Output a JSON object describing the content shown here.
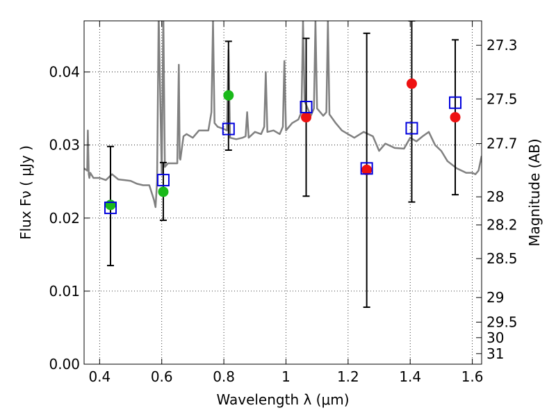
{
  "chart_data": {
    "type": "scatter",
    "xlabel": "Wavelength  λ (μm)",
    "ylabel": "Flux  Fν  ( μJy )",
    "y2label": "Magnitude (AB)",
    "xlim": [
      0.35,
      1.63
    ],
    "ylim": [
      0.0,
      0.047
    ],
    "grid": true,
    "grid_style": "dotted",
    "x_ticks": [
      {
        "value": 0.4,
        "label": "0.4"
      },
      {
        "value": 0.6,
        "label": "0.6"
      },
      {
        "value": 0.8,
        "label": "0.8"
      },
      {
        "value": 1.0,
        "label": "1"
      },
      {
        "value": 1.2,
        "label": "1.2"
      },
      {
        "value": 1.4,
        "label": "1.4"
      },
      {
        "value": 1.6,
        "label": "1.6"
      }
    ],
    "y_ticks": [
      {
        "value": 0.0,
        "label": "0.00"
      },
      {
        "value": 0.01,
        "label": "0.01"
      },
      {
        "value": 0.02,
        "label": "0.02"
      },
      {
        "value": 0.03,
        "label": "0.03"
      },
      {
        "value": 0.04,
        "label": "0.04"
      }
    ],
    "y2_ticks": [
      {
        "mag": 27.3,
        "label": "27.3"
      },
      {
        "mag": 27.5,
        "label": "27.5"
      },
      {
        "mag": 27.7,
        "label": "27.7"
      },
      {
        "mag": 28.0,
        "label": "28"
      },
      {
        "mag": 28.2,
        "label": "28.2"
      },
      {
        "mag": 28.5,
        "label": "28.5"
      },
      {
        "mag": 29.0,
        "label": "29"
      },
      {
        "mag": 29.5,
        "label": "29.5"
      },
      {
        "mag": 30.0,
        "label": "30"
      },
      {
        "mag": 31.0,
        "label": "31"
      }
    ],
    "colors": {
      "sed": "#808080",
      "green_points": "#1ab91a",
      "red_points": "#ee1111",
      "model_squares": "#0000dd",
      "errorbars": "#000000"
    },
    "sed_model": {
      "x": [
        0.35,
        0.36,
        0.362,
        0.365,
        0.367,
        0.37,
        0.38,
        0.4,
        0.42,
        0.44,
        0.46,
        0.48,
        0.5,
        0.52,
        0.54,
        0.56,
        0.575,
        0.58,
        0.585,
        0.59,
        0.6,
        0.605,
        0.61,
        0.62,
        0.65,
        0.655,
        0.658,
        0.66,
        0.67,
        0.68,
        0.7,
        0.72,
        0.75,
        0.76,
        0.765,
        0.77,
        0.78,
        0.8,
        0.81,
        0.815,
        0.82,
        0.84,
        0.86,
        0.87,
        0.875,
        0.88,
        0.9,
        0.92,
        0.93,
        0.935,
        0.94,
        0.96,
        0.98,
        0.99,
        0.995,
        1.0,
        1.02,
        1.04,
        1.05,
        1.055,
        1.06,
        1.08,
        1.09,
        1.095,
        1.1,
        1.12,
        1.13,
        1.135,
        1.14,
        1.16,
        1.18,
        1.2,
        1.22,
        1.25,
        1.28,
        1.3,
        1.32,
        1.35,
        1.38,
        1.4,
        1.42,
        1.44,
        1.46,
        1.48,
        1.5,
        1.52,
        1.55,
        1.58,
        1.6,
        1.61,
        1.62,
        1.63
      ],
      "y": [
        0.0268,
        0.0265,
        0.032,
        0.026,
        0.0255,
        0.0262,
        0.0255,
        0.0255,
        0.0252,
        0.026,
        0.0253,
        0.0252,
        0.0251,
        0.0247,
        0.0245,
        0.0245,
        0.0225,
        0.0215,
        0.025,
        0.048,
        0.026,
        0.048,
        0.027,
        0.0275,
        0.0275,
        0.041,
        0.0282,
        0.028,
        0.0312,
        0.0315,
        0.031,
        0.032,
        0.032,
        0.0345,
        0.047,
        0.033,
        0.0325,
        0.0322,
        0.032,
        0.043,
        0.031,
        0.0308,
        0.031,
        0.0312,
        0.0345,
        0.031,
        0.0318,
        0.0315,
        0.0325,
        0.04,
        0.0318,
        0.032,
        0.0315,
        0.0325,
        0.0415,
        0.032,
        0.033,
        0.0335,
        0.0345,
        0.047,
        0.036,
        0.034,
        0.035,
        0.047,
        0.035,
        0.034,
        0.0345,
        0.047,
        0.0342,
        0.033,
        0.032,
        0.0315,
        0.031,
        0.0318,
        0.0312,
        0.0292,
        0.0302,
        0.0296,
        0.0295,
        0.031,
        0.0305,
        0.0312,
        0.0318,
        0.03,
        0.0292,
        0.0278,
        0.0268,
        0.0262,
        0.0262,
        0.026,
        0.0265,
        0.0285
      ]
    },
    "series": [
      {
        "marker": "circle",
        "color": "#1ab91a",
        "points": [
          {
            "x": 0.435,
            "y": 0.0218
          },
          {
            "x": 0.605,
            "y": 0.0236
          },
          {
            "x": 0.815,
            "y": 0.0368
          }
        ]
      },
      {
        "marker": "circle",
        "color": "#ee1111",
        "points": [
          {
            "x": 1.065,
            "y": 0.0338
          },
          {
            "x": 1.26,
            "y": 0.0266
          },
          {
            "x": 1.405,
            "y": 0.0384
          },
          {
            "x": 1.545,
            "y": 0.0338
          }
        ]
      },
      {
        "marker": "open-square",
        "color": "#0000dd",
        "points": [
          {
            "x": 0.435,
            "y": 0.0214
          },
          {
            "x": 0.605,
            "y": 0.0252
          },
          {
            "x": 0.815,
            "y": 0.0322
          },
          {
            "x": 1.065,
            "y": 0.0352
          },
          {
            "x": 1.26,
            "y": 0.0268
          },
          {
            "x": 1.405,
            "y": 0.0323
          },
          {
            "x": 1.545,
            "y": 0.0358
          }
        ]
      }
    ],
    "errorbars": [
      {
        "x": 0.435,
        "low": 0.0135,
        "high": 0.0298
      },
      {
        "x": 0.605,
        "low": 0.0197,
        "high": 0.0276
      },
      {
        "x": 0.815,
        "low": 0.0293,
        "high": 0.0442
      },
      {
        "x": 1.065,
        "low": 0.023,
        "high": 0.0446
      },
      {
        "x": 1.26,
        "low": 0.0078,
        "high": 0.0453
      },
      {
        "x": 1.405,
        "low": 0.0222,
        "high": 0.047
      },
      {
        "x": 1.545,
        "low": 0.0232,
        "high": 0.0444
      }
    ]
  }
}
